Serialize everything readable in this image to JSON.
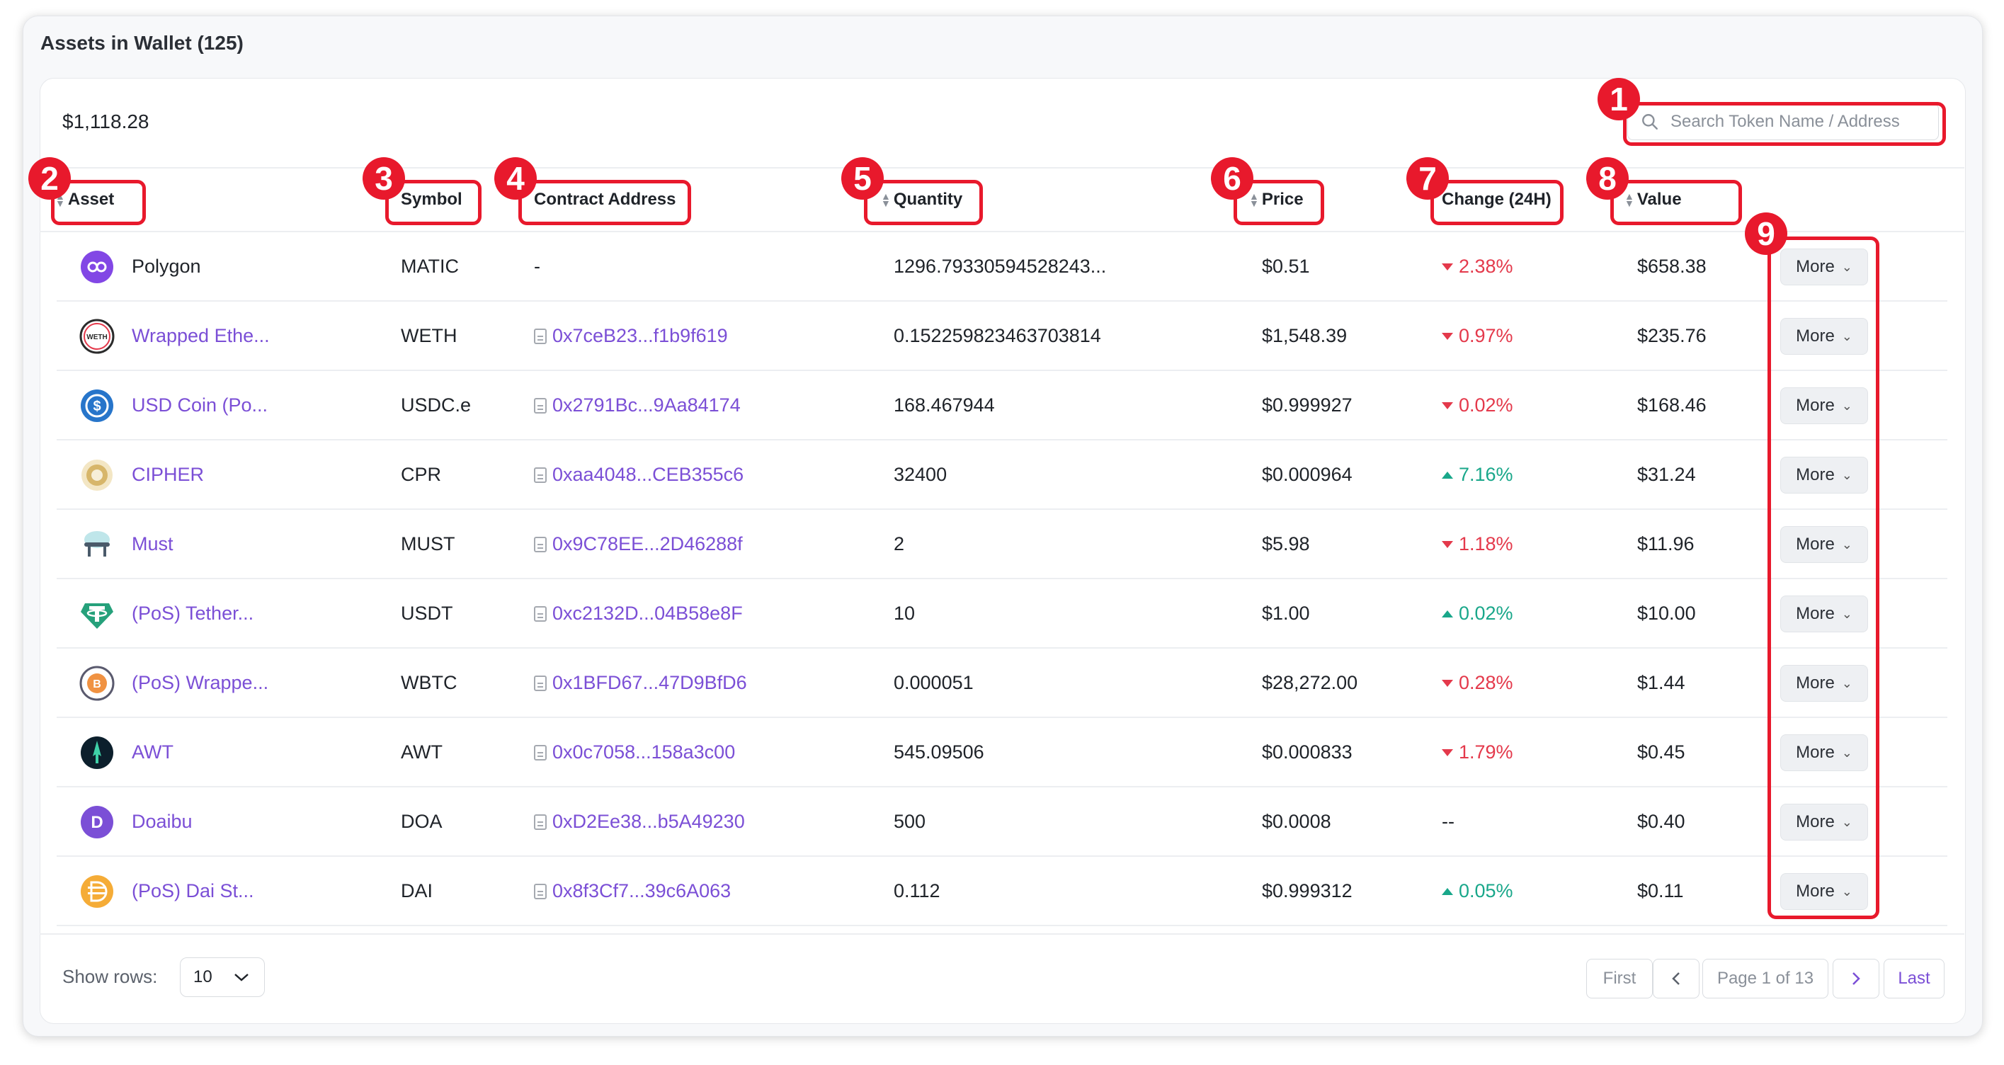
{
  "panel": {
    "title": "Assets in Wallet (125)"
  },
  "summary": {
    "total": "$1,118.28"
  },
  "search": {
    "placeholder": "Search Token Name / Address"
  },
  "columns": {
    "asset": "Asset",
    "symbol": "Symbol",
    "contract": "Contract Address",
    "quantity": "Quantity",
    "price": "Price",
    "change": "Change (24H)",
    "value": "Value"
  },
  "rows": [
    {
      "name": "Polygon",
      "symbol": "MATIC",
      "contract": "-",
      "quantity": "1296.79330594528243...",
      "price": "$0.51",
      "change": "2.38%",
      "direction": "down",
      "value": "$658.38",
      "icon": "polygon-icon",
      "link": false
    },
    {
      "name": "Wrapped Ethe...",
      "symbol": "WETH",
      "contract": "0x7ceB23...f1b9f619",
      "quantity": "0.152259823463703814",
      "price": "$1,548.39",
      "change": "0.97%",
      "direction": "down",
      "value": "$235.76",
      "icon": "weth-icon",
      "link": true
    },
    {
      "name": "USD Coin (Po...",
      "symbol": "USDC.e",
      "contract": "0x2791Bc...9Aa84174",
      "quantity": "168.467944",
      "price": "$0.999927",
      "change": "0.02%",
      "direction": "down",
      "value": "$168.46",
      "icon": "usdc-icon",
      "link": true
    },
    {
      "name": "CIPHER",
      "symbol": "CPR",
      "contract": "0xaa4048...CEB355c6",
      "quantity": "32400",
      "price": "$0.000964",
      "change": "7.16%",
      "direction": "up",
      "value": "$31.24",
      "icon": "cipher-icon",
      "link": true
    },
    {
      "name": "Must",
      "symbol": "MUST",
      "contract": "0x9C78EE...2D46288f",
      "quantity": "2",
      "price": "$5.98",
      "change": "1.18%",
      "direction": "down",
      "value": "$11.96",
      "icon": "must-icon",
      "link": true
    },
    {
      "name": "(PoS) Tether...",
      "symbol": "USDT",
      "contract": "0xc2132D...04B58e8F",
      "quantity": "10",
      "price": "$1.00",
      "change": "0.02%",
      "direction": "up",
      "value": "$10.00",
      "icon": "tether-icon",
      "link": true
    },
    {
      "name": "(PoS) Wrappe...",
      "symbol": "WBTC",
      "contract": "0x1BFD67...47D9BfD6",
      "quantity": "0.000051",
      "price": "$28,272.00",
      "change": "0.28%",
      "direction": "down",
      "value": "$1.44",
      "icon": "wbtc-icon",
      "link": true
    },
    {
      "name": "AWT",
      "symbol": "AWT",
      "contract": "0x0c7058...158a3c00",
      "quantity": "545.09506",
      "price": "$0.000833",
      "change": "1.79%",
      "direction": "down",
      "value": "$0.45",
      "icon": "awt-icon",
      "link": true
    },
    {
      "name": "Doaibu",
      "symbol": "DOA",
      "contract": "0xD2Ee38...b5A49230",
      "quantity": "500",
      "price": "$0.0008",
      "change": "--",
      "direction": "none",
      "value": "$0.40",
      "icon": "doaibu-icon",
      "link": true
    },
    {
      "name": "(PoS) Dai St...",
      "symbol": "DAI",
      "contract": "0x8f3Cf7...39c6A063",
      "quantity": "0.112",
      "price": "$0.999312",
      "change": "0.05%",
      "direction": "up",
      "value": "$0.11",
      "icon": "dai-icon",
      "link": true
    }
  ],
  "actions": {
    "more_label": "More"
  },
  "footer": {
    "show_rows_label": "Show rows:",
    "rows_value": "10",
    "first": "First",
    "page_text": "Page 1 of 13",
    "last": "Last"
  },
  "annotations": [
    "1",
    "2",
    "3",
    "4",
    "5",
    "6",
    "7",
    "8",
    "9"
  ],
  "colors": {
    "accent": "#7b4fd6",
    "negative": "#e4394b",
    "positive": "#19a78a",
    "annotation": "#e8192c"
  }
}
